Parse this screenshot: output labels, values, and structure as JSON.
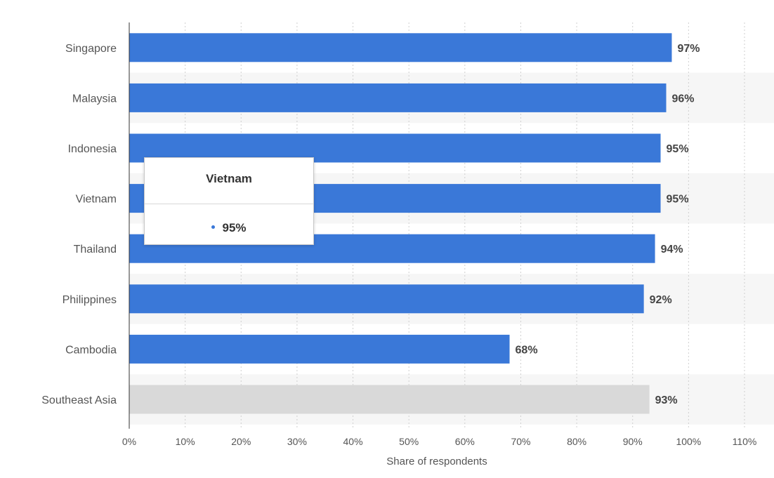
{
  "chart_data": {
    "type": "bar",
    "orientation": "horizontal",
    "categories": [
      "Singapore",
      "Malaysia",
      "Indonesia",
      "Vietnam",
      "Thailand",
      "Philippines",
      "Cambodia",
      "Southeast Asia"
    ],
    "values": [
      97,
      96,
      95,
      95,
      94,
      92,
      68,
      93
    ],
    "data_labels": [
      "97%",
      "96%",
      "95%",
      "95%",
      "94%",
      "92%",
      "68%",
      "93%"
    ],
    "highlighted_category": "Southeast Asia",
    "xlabel": "Share of respondents",
    "xlim": [
      0,
      110
    ],
    "x_ticks": [
      0,
      10,
      20,
      30,
      40,
      50,
      60,
      70,
      80,
      90,
      100,
      110
    ],
    "x_tick_labels": [
      "0%",
      "10%",
      "20%",
      "30%",
      "40%",
      "50%",
      "60%",
      "70%",
      "80%",
      "90%",
      "100%",
      "110%"
    ],
    "grid": "vertical dotted",
    "colors": {
      "bar": "#3a78d8",
      "bar_highlight": "#d9d9d9",
      "band": "#f6f6f6",
      "grid": "#cfcfcf",
      "text": "#555555",
      "label_text": "#444444"
    }
  },
  "tooltip": {
    "title": "Vietnam",
    "value": "95%",
    "dot_color": "#3a78d8"
  }
}
